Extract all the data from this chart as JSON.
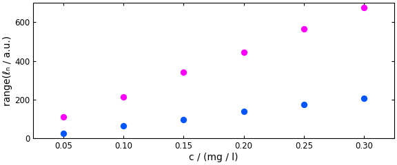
{
  "x": [
    0.05,
    0.1,
    0.15,
    0.2,
    0.25,
    0.3
  ],
  "y_magenta": [
    110,
    215,
    340,
    445,
    565,
    675
  ],
  "y_blue": [
    25,
    65,
    95,
    140,
    175,
    205
  ],
  "magenta_color": "#FF00FF",
  "blue_color": "#0055FF",
  "xlabel": "c / (mg / l)",
  "ylabel": "range(ℓₙ / a.u.)",
  "xlim": [
    0.025,
    0.325
  ],
  "ylim": [
    0,
    700
  ],
  "xticks": [
    0.05,
    0.1,
    0.15,
    0.2,
    0.25,
    0.3
  ],
  "yticks": [
    0,
    200,
    400,
    600
  ],
  "marker_size": 45,
  "background_color": "#ffffff",
  "tick_labelsize": 8.5,
  "axis_labelsize": 10
}
